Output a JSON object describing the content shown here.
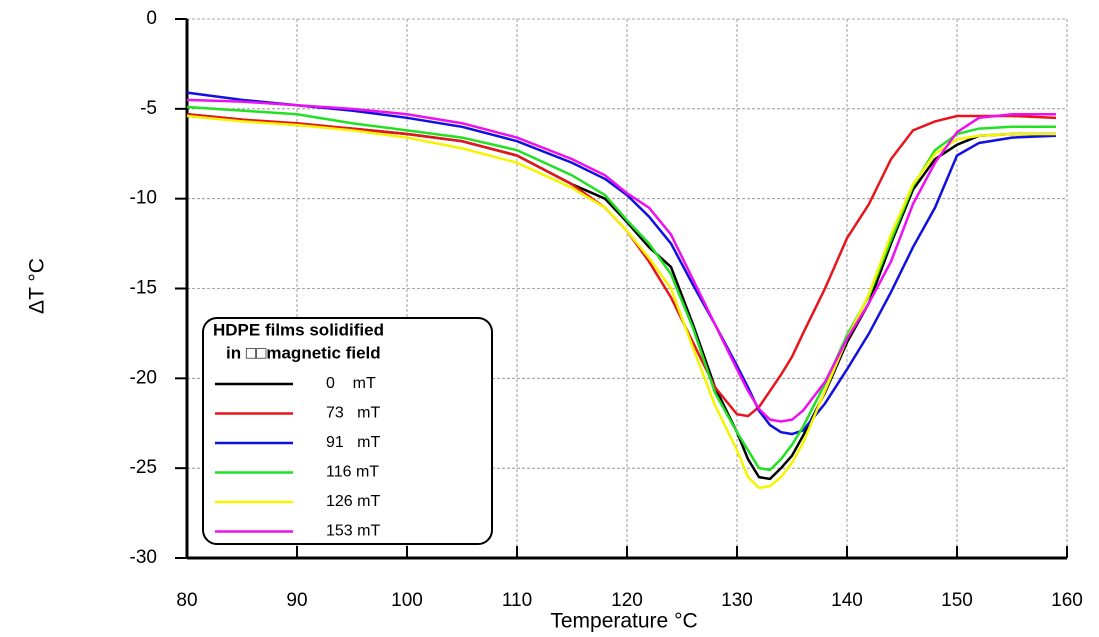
{
  "chart_data": {
    "type": "line",
    "x_label": "Temperature °C",
    "y_label": "ΔT °C",
    "legend_title": [
      "HDPE films solidified",
      "in □□magnetic field"
    ],
    "x": [
      80,
      85,
      90,
      95,
      100,
      105,
      110,
      115,
      118,
      120,
      122,
      124,
      126,
      128,
      130,
      131,
      132,
      133,
      134,
      135,
      136,
      138,
      140,
      142,
      144,
      146,
      148,
      150,
      152,
      155,
      159
    ],
    "series": [
      {
        "name": "0    mT",
        "color": "#000000",
        "values": [
          -5.3,
          -5.6,
          -5.9,
          -6.1,
          -6.4,
          -6.8,
          -7.6,
          -9.2,
          -10.0,
          -11.3,
          -12.7,
          -13.8,
          -17,
          -20.5,
          -23,
          -24.5,
          -25.5,
          -25.6,
          -25,
          -24.3,
          -23.2,
          -20.8,
          -18,
          -15.8,
          -12.5,
          -9.5,
          -7.8,
          -7,
          -6.5,
          -6.4,
          -6.4
        ]
      },
      {
        "name": "73   mT",
        "color": "#e8141c",
        "values": [
          -5.3,
          -5.6,
          -5.8,
          -6.1,
          -6.4,
          -6.8,
          -7.6,
          -9.2,
          -10.5,
          -11.8,
          -13.5,
          -15.5,
          -18,
          -20.5,
          -22,
          -22.1,
          -21.6,
          -20.7,
          -19.8,
          -18.8,
          -17.5,
          -15,
          -12.2,
          -10.3,
          -7.8,
          -6.2,
          -5.7,
          -5.4,
          -5.4,
          -5.4,
          -5.5
        ]
      },
      {
        "name": "91   mT",
        "color": "#1010e0",
        "values": [
          -4.1,
          -4.5,
          -4.8,
          -5.1,
          -5.5,
          -6.0,
          -6.8,
          -8.0,
          -8.9,
          -9.8,
          -11.0,
          -12.5,
          -14.8,
          -17,
          -19.3,
          -20.5,
          -21.8,
          -22.6,
          -23,
          -23.1,
          -22.9,
          -21.4,
          -19.5,
          -17.5,
          -15.2,
          -12.7,
          -10.5,
          -7.6,
          -6.9,
          -6.6,
          -6.5
        ]
      },
      {
        "name": "116 mT",
        "color": "#22e022",
        "values": [
          -4.9,
          -5.1,
          -5.3,
          -5.8,
          -6.2,
          -6.6,
          -7.3,
          -8.7,
          -9.8,
          -11.2,
          -12.5,
          -14.2,
          -17.2,
          -20.8,
          -23,
          -24,
          -25,
          -25.1,
          -24.5,
          -23.7,
          -22.7,
          -20.3,
          -17.6,
          -15.4,
          -12.3,
          -9.3,
          -7.3,
          -6.4,
          -6.1,
          -6.0,
          -6.0
        ]
      },
      {
        "name": "126 mT",
        "color": "#f5f500",
        "values": [
          -5.4,
          -5.7,
          -5.9,
          -6.2,
          -6.6,
          -7.2,
          -8.0,
          -9.4,
          -10.5,
          -11.8,
          -13.3,
          -15,
          -18.3,
          -21.5,
          -24,
          -25.5,
          -26.1,
          -26.0,
          -25.5,
          -24.7,
          -23.6,
          -20.7,
          -17.8,
          -15.3,
          -12,
          -9.2,
          -7.5,
          -6.7,
          -6.5,
          -6.4,
          -6.4
        ]
      },
      {
        "name": "153 mT",
        "color": "#ee10ee",
        "values": [
          -4.5,
          -4.6,
          -4.8,
          -5.0,
          -5.3,
          -5.8,
          -6.6,
          -7.8,
          -8.7,
          -9.7,
          -10.5,
          -12,
          -14.5,
          -17,
          -19.5,
          -20.7,
          -21.7,
          -22.3,
          -22.4,
          -22.3,
          -21.8,
          -20.2,
          -17.8,
          -15.8,
          -13.5,
          -10.3,
          -8.0,
          -6.3,
          -5.5,
          -5.3,
          -5.3
        ]
      }
    ],
    "xlim": [
      80,
      160
    ],
    "xticks": [
      80,
      90,
      100,
      110,
      120,
      130,
      140,
      150,
      160
    ],
    "ylim": [
      -30,
      0
    ],
    "yticks": [
      0,
      -5,
      -10,
      -15,
      -20,
      -25,
      -30
    ],
    "grid": true
  }
}
